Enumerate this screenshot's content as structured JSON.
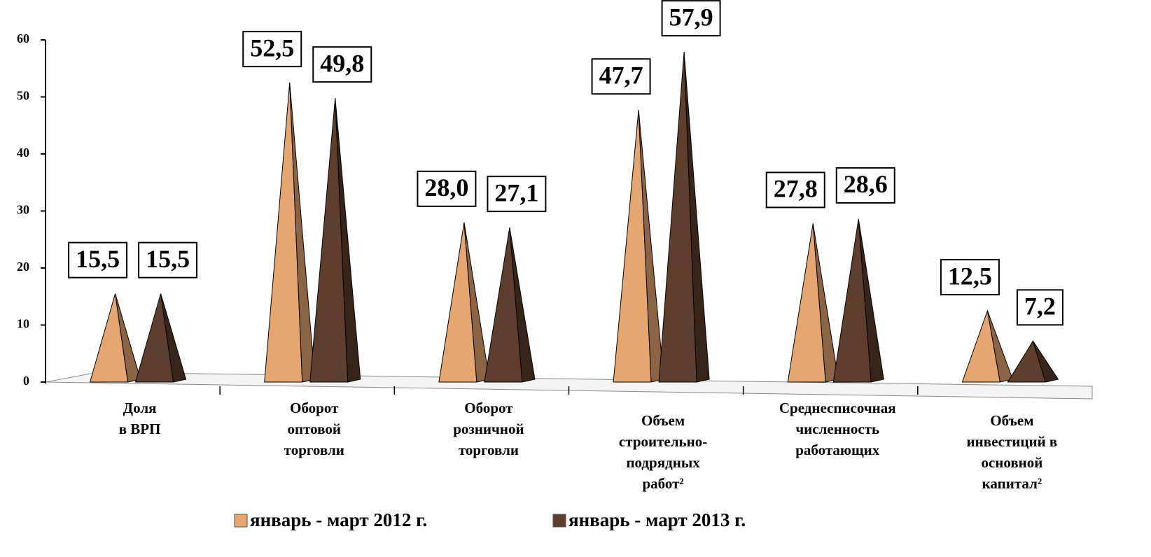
{
  "chart_data": {
    "type": "pyramid",
    "categories": [
      [
        "Доля",
        "в ВРП"
      ],
      [
        "Оборот",
        "оптовой",
        "торговли"
      ],
      [
        "Оборот",
        "розничной",
        "торговли"
      ],
      [
        "Объем",
        "строительно-",
        "подрядных",
        "работ²"
      ],
      [
        "Среднесписочная",
        "численность",
        "работающих"
      ],
      [
        "Объем",
        "инвестиций в",
        "основной",
        "капитал²"
      ]
    ],
    "series": [
      {
        "name": "январь - март 2012 г.",
        "color": "#e6a670",
        "values": [
          15.5,
          52.5,
          28.0,
          47.7,
          27.8,
          12.5
        ],
        "value_labels": [
          "15,5",
          "52,5",
          "28,0",
          "47,7",
          "27,8",
          "12,5"
        ]
      },
      {
        "name": "январь - март 2013 г.",
        "color": "#5e3e2c",
        "values": [
          15.5,
          49.8,
          27.1,
          57.9,
          28.6,
          7.2
        ],
        "value_labels": [
          "15,5",
          "49,8",
          "27,1",
          "57,9",
          "28,6",
          "7,2"
        ]
      }
    ],
    "ylim": [
      0,
      60
    ],
    "yticks": [
      0,
      10,
      20,
      30,
      40,
      50,
      60
    ],
    "legend": "bottom"
  }
}
